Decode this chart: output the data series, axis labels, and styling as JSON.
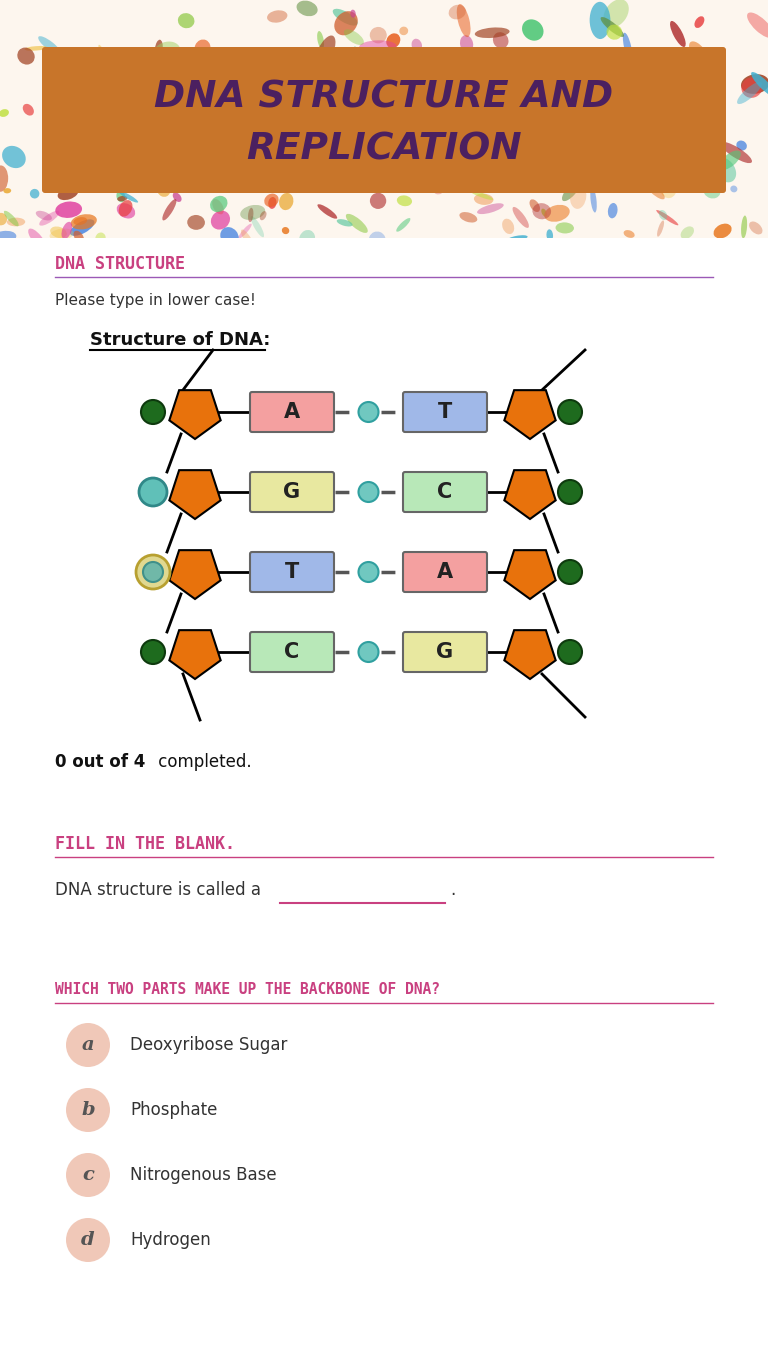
{
  "title_line1": "DNA STRUCTURE AND",
  "title_line2": "REPLICATION",
  "title_bg_color": "#C8752A",
  "title_text_color": "#4B2060",
  "section1_label": "DNA STRUCTURE",
  "section1_color": "#c94080",
  "subtitle_text": "Please type in lower case!",
  "dna_label": "Structure of DNA:",
  "base_pairs": [
    {
      "left": "A",
      "right": "T",
      "left_color": "#f4a0a0",
      "right_color": "#a0b8e8"
    },
    {
      "left": "G",
      "right": "C",
      "left_color": "#e8e8a0",
      "right_color": "#b8e8b8"
    },
    {
      "left": "T",
      "right": "A",
      "left_color": "#a0b8e8",
      "right_color": "#f4a0a0"
    },
    {
      "left": "C",
      "right": "G",
      "left_color": "#b8e8b8",
      "right_color": "#e8e8a0"
    }
  ],
  "pentagon_color": "#e8720c",
  "completed_text_bold": "0 out of 4",
  "completed_text_normal": " completed.",
  "section2_label": "FILL IN THE BLANK.",
  "section2_color": "#c94080",
  "blank_text": "DNA structure is called a",
  "section3_label": "WHICH TWO PARTS MAKE UP THE BACKBONE OF DNA?",
  "section3_color": "#c94080",
  "choices": [
    "Deoxyribose Sugar",
    "Phosphate",
    "Nitrogenous Base",
    "Hydrogen"
  ],
  "choice_labels": [
    "a",
    "b",
    "c",
    "d"
  ],
  "choice_circle_color": "#f0c8b8",
  "background_color": "#ffffff",
  "leaf_bg_color": "#fdf6ee"
}
